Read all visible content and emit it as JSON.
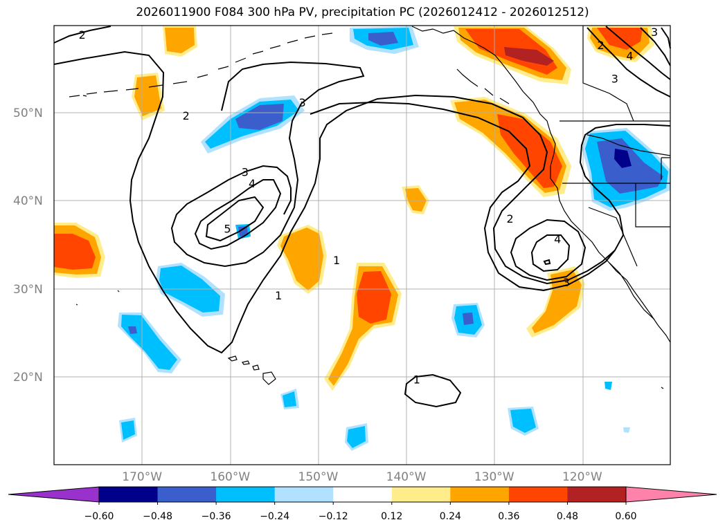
{
  "title": "2026011900 F084 300 hPa PV, precipitation PC (2026012412 - 2026012512)",
  "lat_labels": [
    {
      "value": 50,
      "text": "50°N"
    },
    {
      "value": 40,
      "text": "40°N"
    },
    {
      "value": 30,
      "text": "30°N"
    },
    {
      "value": 20,
      "text": "20°N"
    }
  ],
  "lon_labels": [
    {
      "value": -170,
      "text": "170°W"
    },
    {
      "value": -160,
      "text": "160°W"
    },
    {
      "value": -150,
      "text": "150°W"
    },
    {
      "value": -140,
      "text": "140°W"
    },
    {
      "value": -130,
      "text": "130°W"
    },
    {
      "value": -120,
      "text": "120°W"
    }
  ],
  "colorbar": {
    "colors": [
      "#9932cc",
      "#00008b",
      "#3a5fcd",
      "#00bfff",
      "#b0e2ff",
      "#ffffff",
      "#ffec8b",
      "#ffa500",
      "#ff4500",
      "#b22222",
      "#ff82ab"
    ],
    "labels": [
      "−0.60",
      "−0.48",
      "−0.36",
      "−0.24",
      "−0.12",
      "0.12",
      "0.24",
      "0.36",
      "0.48",
      "0.60"
    ]
  },
  "contour_labels": [
    {
      "text": "2",
      "lon": -176.8,
      "lat": 59
    },
    {
      "text": "2",
      "lon": -165,
      "lat": 49.8
    },
    {
      "text": "3",
      "lon": -151.8,
      "lat": 51.3
    },
    {
      "text": "3",
      "lon": -158.3,
      "lat": 43.4
    },
    {
      "text": "4",
      "lon": -157.5,
      "lat": 42.1
    },
    {
      "text": "5",
      "lon": -160.3,
      "lat": 37
    },
    {
      "text": "1",
      "lon": -154.5,
      "lat": 29.4
    },
    {
      "text": "2",
      "lon": -128.2,
      "lat": 38.1
    },
    {
      "text": "4",
      "lon": -122.8,
      "lat": 35.8
    },
    {
      "text": "3",
      "lon": -121.8,
      "lat": 30.9
    },
    {
      "text": "1",
      "lon": -138.8,
      "lat": 19.9
    },
    {
      "text": "2",
      "lon": -117.9,
      "lat": 57.8
    },
    {
      "text": "4",
      "lon": -114.6,
      "lat": 56.6
    },
    {
      "text": "3",
      "lon": -116.3,
      "lat": 54
    },
    {
      "text": "3",
      "lon": -111.8,
      "lat": 59.3
    },
    {
      "text": "1",
      "lon": -147.9,
      "lat": 33.4
    }
  ]
}
